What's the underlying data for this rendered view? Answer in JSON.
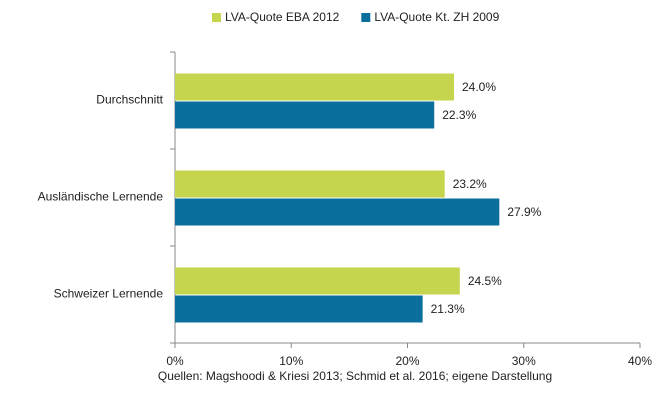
{
  "chart_data": {
    "type": "bar",
    "orientation": "horizontal",
    "categories": [
      "Durchschnitt",
      "Ausländische Lernende",
      "Schweizer Lernende"
    ],
    "series": [
      {
        "name": "LVA-Quote EBA 2012",
        "color": "#c5d54e",
        "values": [
          24.0,
          23.2,
          24.5
        ],
        "value_labels": [
          "24.0%",
          "23.2%",
          "24.5%"
        ]
      },
      {
        "name": "LVA-Quote Kt. ZH 2009",
        "color": "#0a6f9c",
        "values": [
          22.3,
          27.9,
          21.3
        ],
        "value_labels": [
          "22.3%",
          "27.9%",
          "21.3%"
        ]
      }
    ],
    "xlim": [
      0,
      40
    ],
    "xticks": [
      {
        "value": 0,
        "label": "0%"
      },
      {
        "value": 10,
        "label": "10%"
      },
      {
        "value": 20,
        "label": "20%"
      },
      {
        "value": 30,
        "label": "30%"
      },
      {
        "value": 40,
        "label": "40%"
      }
    ],
    "grid": false,
    "legend": "top",
    "source": "Quellen: Magshoodi & Kriesi 2013; Schmid et al. 2016; eigene Darstellung"
  }
}
